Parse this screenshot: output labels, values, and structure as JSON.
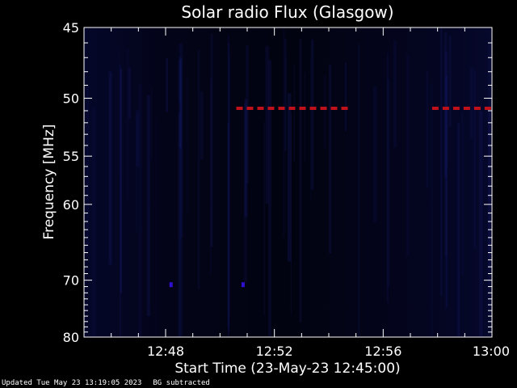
{
  "chart_data": {
    "type": "heatmap",
    "title": "Solar radio Flux (Glasgow)",
    "xlabel": "Start Time (23-May-23 12:45:00)",
    "ylabel": "Frequency [MHz]",
    "x_ticks": [
      "12:48",
      "12:52",
      "12:56",
      "13:00"
    ],
    "x_tick_minutes": [
      3,
      7,
      11,
      15
    ],
    "xlim_minutes": [
      0,
      15
    ],
    "y_ticks": [
      45,
      50,
      55,
      60,
      70,
      80
    ],
    "ylim": [
      45,
      80
    ],
    "y_scale": "reciprocal",
    "grid": false,
    "background_color": "#000010",
    "features": [
      {
        "type": "dashed-band",
        "color": "#c0101a",
        "frequency": 50.8,
        "x_start_minutes": 5.6,
        "x_end_minutes": 9.7
      },
      {
        "type": "dashed-band",
        "color": "#c0101a",
        "frequency": 50.8,
        "x_start_minutes": 12.8,
        "x_end_minutes": 15.0
      },
      {
        "type": "dot",
        "color": "#3010d0",
        "frequency": 70.7,
        "x_minutes": 3.2
      },
      {
        "type": "dot",
        "color": "#3010d0",
        "frequency": 70.7,
        "x_minutes": 5.85
      }
    ]
  },
  "footer": {
    "updated": "Updated Tue May 23 13:19:05 2023",
    "note": "BG subtracted"
  }
}
